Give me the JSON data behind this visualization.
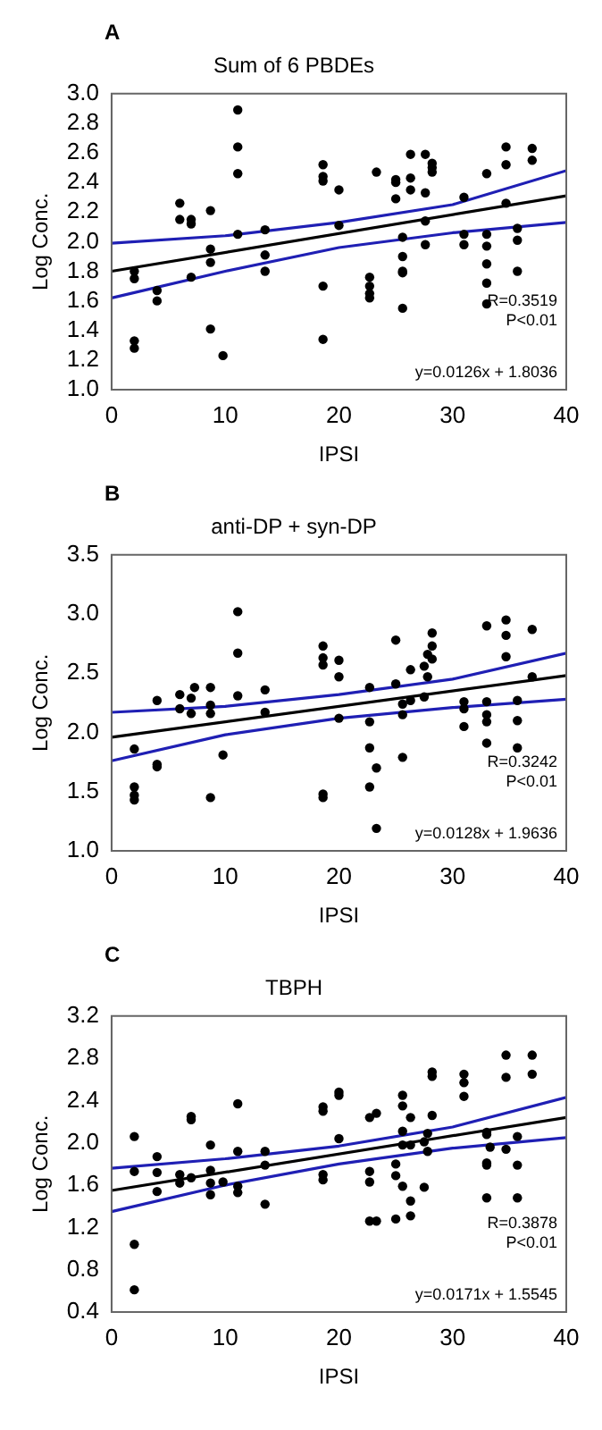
{
  "chart_data": [
    {
      "type": "scatter",
      "title": "Sum of 6 PBDEs",
      "xlabel": "IPSI",
      "ylabel": "Log Conc.",
      "annotations": [
        "A",
        "R=0.3519",
        "P<0.01",
        "y=0.0126x + 1.8036"
      ],
      "xlim": [
        0,
        40
      ],
      "xticks": [
        0,
        10,
        20,
        30,
        40
      ],
      "ylim": [
        1,
        3
      ],
      "yticks": [
        {
          "value": 1,
          "label": "1.0"
        },
        1.2,
        1.4,
        1.6,
        1.8,
        {
          "value": 2,
          "label": "2.0"
        },
        2.2,
        2.4,
        2.6,
        2.8,
        {
          "value": 3,
          "label": "3.0"
        }
      ],
      "series": [
        {
          "marker": "circle",
          "color": "#000000",
          "x": [
            2,
            2,
            2,
            2,
            4,
            4,
            6,
            6,
            7,
            7,
            7,
            8.7,
            8.7,
            8.7,
            8.7,
            9.8,
            11.1,
            11.1,
            11.1,
            11.1,
            13.5,
            13.5,
            13.5,
            18.6,
            18.6,
            18.6,
            18.6,
            18.6,
            20,
            20,
            23.3,
            22.7,
            22.7,
            22.7,
            22.7,
            25,
            25,
            25,
            25.6,
            25.6,
            25.6,
            25.6,
            25.6,
            26.3,
            26.3,
            26.3,
            27.6,
            27.6,
            27.6,
            27.6,
            28.2,
            28.2,
            28.2,
            31,
            31,
            31,
            33,
            33,
            33,
            33,
            33,
            33,
            34.7,
            34.7,
            34.7,
            35.7,
            35.7,
            35.7,
            37,
            37
          ],
          "values": [
            1.8,
            1.75,
            1.33,
            1.28,
            1.67,
            1.6,
            2.26,
            2.15,
            2.12,
            2.15,
            1.76,
            2.21,
            1.95,
            1.86,
            1.41,
            1.23,
            2.89,
            2.64,
            2.46,
            2.05,
            2.08,
            1.91,
            1.8,
            2.52,
            2.44,
            2.41,
            1.7,
            1.34,
            2.35,
            2.11,
            2.47,
            1.76,
            1.7,
            1.65,
            1.62,
            2.42,
            2.4,
            2.29,
            2.03,
            1.9,
            1.8,
            1.79,
            1.55,
            2.59,
            2.43,
            2.35,
            2.59,
            2.33,
            2.14,
            1.98,
            2.53,
            2.5,
            2.47,
            2.3,
            2.05,
            1.98,
            2.46,
            2.05,
            1.97,
            1.85,
            1.72,
            1.58,
            2.64,
            2.52,
            2.26,
            2.09,
            2.01,
            1.8,
            2.63,
            2.55
          ]
        },
        {
          "type": "line",
          "marker": "none",
          "color": "#000000",
          "x": [
            0,
            40
          ],
          "values": [
            1.8,
            2.31
          ]
        },
        {
          "type": "line",
          "marker": "none",
          "color": "#1f1fb4",
          "x": [
            0,
            10,
            20,
            30,
            40
          ],
          "values": [
            1.99,
            2.04,
            2.13,
            2.25,
            2.48
          ]
        },
        {
          "type": "line",
          "marker": "none",
          "color": "#1f1fb4",
          "x": [
            0,
            10,
            20,
            30,
            40
          ],
          "values": [
            1.62,
            1.8,
            1.96,
            2.06,
            2.13
          ]
        }
      ]
    },
    {
      "type": "scatter",
      "title": "anti-DP + syn-DP",
      "xlabel": "IPSI",
      "ylabel": "Log Conc.",
      "annotations": [
        "B",
        "R=0.3242",
        "P<0.01",
        "y=0.0128x + 1.9636"
      ],
      "xlim": [
        0,
        40
      ],
      "xticks": [
        0,
        10,
        20,
        30,
        40
      ],
      "ylim": [
        1,
        3.5
      ],
      "yticks": [
        {
          "value": 1,
          "label": "1.0"
        },
        1.5,
        {
          "value": 2,
          "label": "2.0"
        },
        2.5,
        {
          "value": 3,
          "label": "3.0"
        },
        3.5
      ],
      "series": [
        {
          "marker": "circle",
          "color": "#000000",
          "x": [
            2,
            2,
            2,
            2,
            4,
            4,
            4,
            6,
            6,
            7,
            7,
            7.3,
            8.7,
            8.7,
            8.7,
            8.7,
            9.8,
            11.1,
            11.1,
            11.1,
            13.5,
            13.5,
            18.6,
            18.6,
            18.6,
            18.6,
            18.6,
            20,
            20,
            20,
            22.7,
            22.7,
            22.7,
            22.7,
            23.3,
            23.3,
            25,
            25,
            25.6,
            25.6,
            25.6,
            26.3,
            26.3,
            27.5,
            27.5,
            27.8,
            27.8,
            28.2,
            28.2,
            28.2,
            31,
            31,
            31,
            33,
            33,
            33,
            33,
            33,
            34.7,
            34.7,
            34.7,
            35.7,
            35.7,
            35.7,
            37,
            37
          ],
          "values": [
            1.86,
            1.54,
            1.47,
            1.43,
            2.27,
            1.73,
            1.71,
            2.32,
            2.2,
            2.29,
            2.16,
            2.38,
            2.38,
            2.23,
            2.16,
            1.45,
            1.81,
            3.02,
            2.67,
            2.31,
            2.36,
            2.17,
            2.73,
            2.63,
            2.57,
            1.48,
            1.45,
            2.61,
            2.47,
            2.12,
            2.38,
            2.09,
            1.87,
            1.54,
            1.7,
            1.19,
            2.78,
            2.41,
            2.24,
            2.15,
            1.79,
            2.53,
            2.27,
            2.56,
            2.3,
            2.66,
            2.47,
            2.84,
            2.73,
            2.62,
            2.26,
            2.2,
            2.05,
            2.9,
            2.26,
            2.15,
            2.09,
            1.91,
            2.95,
            2.82,
            2.64,
            2.27,
            2.1,
            1.87,
            2.87,
            2.47
          ]
        },
        {
          "type": "line",
          "marker": "none",
          "color": "#000000",
          "x": [
            0,
            40
          ],
          "values": [
            1.96,
            2.48
          ]
        },
        {
          "type": "line",
          "marker": "none",
          "color": "#1f1fb4",
          "x": [
            0,
            10,
            20,
            30,
            40
          ],
          "values": [
            2.17,
            2.22,
            2.32,
            2.45,
            2.67
          ]
        },
        {
          "type": "line",
          "marker": "none",
          "color": "#1f1fb4",
          "x": [
            0,
            10,
            20,
            30,
            40
          ],
          "values": [
            1.76,
            1.98,
            2.12,
            2.21,
            2.28
          ]
        }
      ]
    },
    {
      "type": "scatter",
      "title": "TBPH",
      "xlabel": "IPSI",
      "ylabel": "Log Conc.",
      "annotations": [
        "C",
        "R=0.3878",
        "P<0.01",
        "y=0.0171x + 1.5545"
      ],
      "xlim": [
        0,
        40
      ],
      "xticks": [
        0,
        10,
        20,
        30,
        40
      ],
      "ylim": [
        0.4,
        3.2
      ],
      "yticks": [
        0.4,
        0.8,
        1.2,
        1.6,
        {
          "value": 2,
          "label": "2.0"
        },
        2.4,
        2.8,
        3.2
      ],
      "series": [
        {
          "marker": "circle",
          "color": "#000000",
          "x": [
            2,
            2,
            2,
            2,
            4,
            4,
            4,
            6,
            6,
            7,
            7,
            7,
            8.7,
            8.7,
            8.7,
            8.7,
            9.8,
            11.1,
            11.1,
            11.1,
            11.1,
            13.5,
            13.5,
            13.5,
            18.6,
            18.6,
            18.6,
            18.6,
            20,
            20,
            20,
            22.7,
            22.7,
            22.7,
            22.7,
            23.3,
            23.3,
            25,
            25,
            25,
            25.6,
            25.6,
            25.6,
            25.6,
            25.6,
            26.3,
            26.3,
            26.3,
            26.3,
            27.5,
            27.5,
            27.8,
            27.8,
            28.2,
            28.2,
            28.2,
            31,
            31,
            31,
            33,
            33,
            33,
            33,
            33,
            33.3,
            34.7,
            34.7,
            34.7,
            35.7,
            35.7,
            35.7,
            37,
            37
          ],
          "values": [
            2.06,
            1.73,
            1.04,
            0.61,
            1.87,
            1.72,
            1.54,
            1.7,
            1.62,
            2.22,
            2.25,
            1.67,
            1.98,
            1.74,
            1.62,
            1.51,
            1.63,
            2.37,
            1.92,
            1.59,
            1.53,
            1.92,
            1.79,
            1.42,
            2.34,
            2.3,
            1.7,
            1.65,
            2.48,
            2.45,
            2.04,
            2.24,
            1.73,
            1.63,
            1.26,
            2.28,
            1.26,
            1.8,
            1.69,
            1.28,
            2.45,
            2.35,
            2.11,
            1.98,
            1.59,
            2.24,
            1.98,
            1.45,
            1.31,
            2.01,
            1.58,
            2.09,
            1.92,
            2.67,
            2.63,
            2.26,
            2.65,
            2.57,
            2.44,
            2.1,
            2.08,
            1.81,
            1.79,
            1.48,
            1.96,
            2.83,
            2.62,
            1.94,
            2.06,
            1.79,
            1.48,
            2.83,
            2.65
          ]
        },
        {
          "type": "line",
          "marker": "none",
          "color": "#000000",
          "x": [
            0,
            40
          ],
          "values": [
            1.55,
            2.24
          ]
        },
        {
          "type": "line",
          "marker": "none",
          "color": "#1f1fb4",
          "x": [
            0,
            10,
            20,
            30,
            40
          ],
          "values": [
            1.76,
            1.85,
            1.97,
            2.15,
            2.43
          ]
        },
        {
          "type": "line",
          "marker": "none",
          "color": "#1f1fb4",
          "x": [
            0,
            10,
            20,
            30,
            40
          ],
          "values": [
            1.35,
            1.6,
            1.8,
            1.95,
            2.05
          ]
        }
      ]
    }
  ]
}
